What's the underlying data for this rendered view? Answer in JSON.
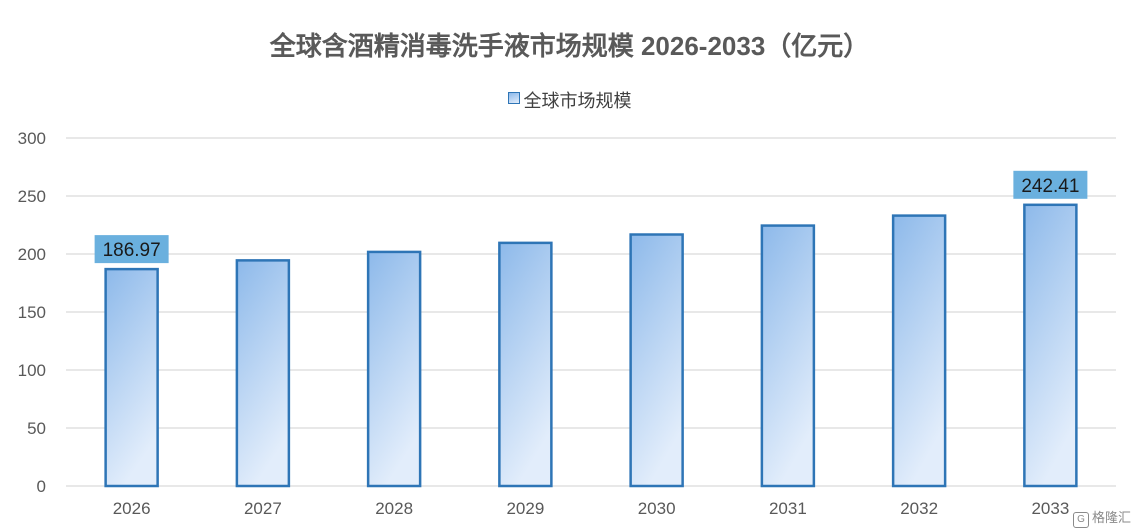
{
  "chart_data": {
    "type": "bar",
    "title": "全球含酒精消毒洗手液市场规模 2026-2033（亿元）",
    "categories": [
      "2026",
      "2027",
      "2028",
      "2029",
      "2030",
      "2031",
      "2032",
      "2033"
    ],
    "series": [
      {
        "name": "全球市场规模",
        "values": [
          186.97,
          194.5,
          201.8,
          209.6,
          216.8,
          224.5,
          233.1,
          242.41
        ]
      }
    ],
    "data_labels": {
      "2026": "186.97",
      "2033": "242.41"
    },
    "ylim": [
      0,
      300
    ],
    "yticks": [
      0,
      50,
      100,
      150,
      200,
      250,
      300
    ],
    "grid": true,
    "legend_position": "top"
  },
  "colors": {
    "bar_top": "#8db9ea",
    "bar_bottom": "#e2edfb",
    "bar_border": "#2e75b6",
    "label_bg": "#6ab0de",
    "grid": "#d9d9d9",
    "axis_text": "#595959"
  },
  "watermark": {
    "logo": "G",
    "text": "格隆汇"
  }
}
